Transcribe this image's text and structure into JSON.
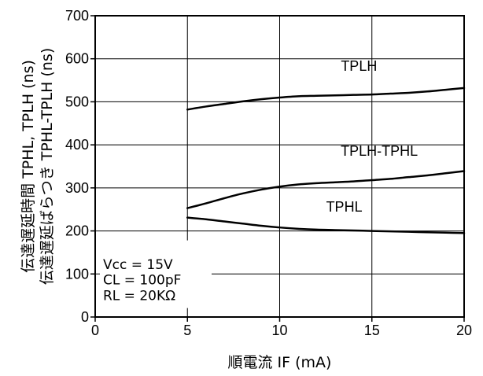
{
  "chart_data": {
    "type": "line",
    "xlabel": "順電流 IF (mA)",
    "ylabel": [
      "伝達遅延時間 TPHL, TPLH (ns)",
      "伝達遅延ばらつき TPHL-TPLH (ns)"
    ],
    "xlim": [
      0,
      20
    ],
    "ylim": [
      0,
      700
    ],
    "x_ticks": [
      0,
      5,
      10,
      15,
      20
    ],
    "y_ticks": [
      0,
      100,
      200,
      300,
      400,
      500,
      600,
      700
    ],
    "grid": true,
    "series": [
      {
        "name": "TPLH",
        "x": [
          5,
          6,
          7,
          8,
          9,
          10,
          11,
          12,
          13,
          14,
          15,
          16,
          17,
          18,
          19,
          20
        ],
        "values": [
          482,
          489,
          495,
          501,
          506,
          510,
          513,
          514,
          515,
          516,
          517,
          519,
          521,
          524,
          528,
          532
        ]
      },
      {
        "name": "TPLH-TPHL",
        "x": [
          5,
          6,
          7,
          8,
          9,
          10,
          11,
          12,
          13,
          14,
          15,
          16,
          17,
          18,
          19,
          20
        ],
        "values": [
          253,
          264,
          276,
          287,
          296,
          303,
          308,
          311,
          313,
          315,
          318,
          321,
          325,
          329,
          334,
          339
        ]
      },
      {
        "name": "TPHL",
        "x": [
          5,
          6,
          7,
          8,
          9,
          10,
          11,
          12,
          13,
          14,
          15,
          16,
          17,
          18,
          19,
          20
        ],
        "values": [
          231,
          227,
          222,
          217,
          212,
          208,
          205,
          203,
          202,
          201,
          200,
          199,
          198,
          197,
          196,
          195
        ]
      }
    ],
    "annotations": {
      "series_labels": [
        "TPLH",
        "TPLH-TPHL",
        "TPHL"
      ],
      "conditions": [
        "Vcc = 15V",
        "CL = 100pF",
        "RL = 20KΩ"
      ]
    }
  }
}
